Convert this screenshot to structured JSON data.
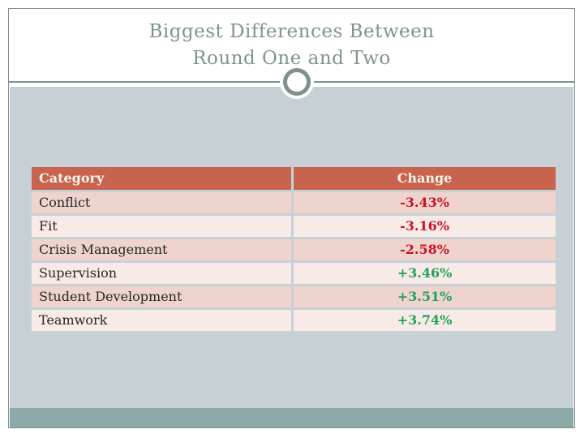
{
  "slide": {
    "title": {
      "line1": "Biggest Differences Between",
      "line2": "Round One and Two"
    }
  },
  "table": {
    "headers": {
      "category": "Category",
      "change": "Change"
    },
    "rows": [
      {
        "category": "Conflict",
        "change": "-3.43%"
      },
      {
        "category": "Fit",
        "change": "-3.16%"
      },
      {
        "category": "Crisis Management",
        "change": "-2.58%"
      },
      {
        "category": "Supervision",
        "change": "+3.46%"
      },
      {
        "category": "Student Development",
        "change": "+3.51%"
      },
      {
        "category": "Teamwork",
        "change": "+3.74%"
      }
    ]
  },
  "colors": {
    "header_bg": "#c8634d",
    "row_odd_bg": "#eed4cc",
    "row_even_bg": "#f8ebe7",
    "negative": "#ce1126",
    "positive": "#1fa25a",
    "accent_border": "#7e908f",
    "title_color": "#7d948f",
    "content_bg": "#c7d1d5",
    "bottom_band": "#8caaa8"
  }
}
